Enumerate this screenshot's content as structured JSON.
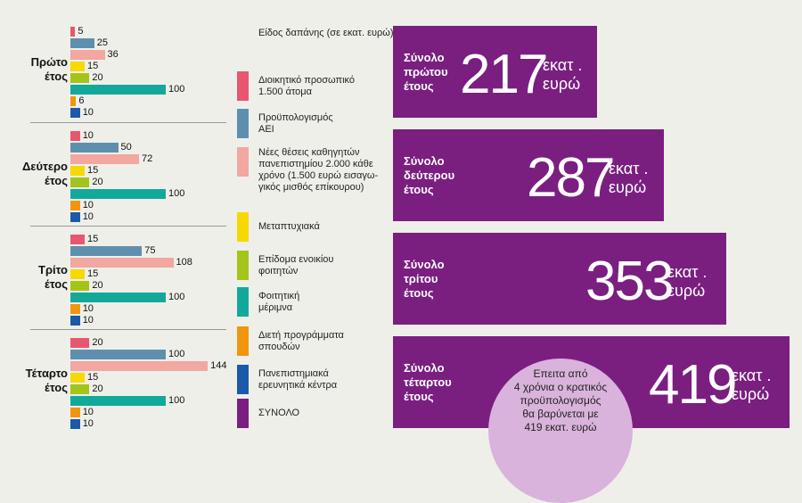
{
  "chart_data": {
    "type": "bar",
    "orientation": "horizontal",
    "groups": [
      "Πρώτο\nέτος",
      "Δεύτερο\nέτος",
      "Τρίτο\nέτος",
      "Τέταρτο\nέτος"
    ],
    "series": [
      {
        "name": "Διοικητικό προσωπικό\n1.500 άτομα",
        "color": "#e8566f",
        "values": [
          5,
          10,
          15,
          20
        ]
      },
      {
        "name": "Προϋπολογισμός\nΑΕΙ",
        "color": "#5f8fae",
        "values": [
          25,
          50,
          75,
          100
        ]
      },
      {
        "name": "Νέες θέσεις καθηγητών\nπανεπιστημίου 2.000 κάθε\nχρόνο (1.500 ευρώ εισαγω-\nγικός μισθός επίκουρου)",
        "color": "#f2a7a0",
        "values": [
          36,
          72,
          108,
          144
        ]
      },
      {
        "name": "Μεταπτυχιακά",
        "color": "#f7d800",
        "values": [
          15,
          15,
          15,
          15
        ]
      },
      {
        "name": "Επίδομα ενοικίου\nφοιτητών",
        "color": "#a4c41a",
        "values": [
          20,
          20,
          20,
          20
        ]
      },
      {
        "name": "Φοιτητική\nμέριμνα",
        "color": "#12a99b",
        "values": [
          100,
          100,
          100,
          100
        ]
      },
      {
        "name": "Διετή προγράμματα\nσπουδών",
        "color": "#f0960e",
        "values": [
          6,
          10,
          10,
          10
        ]
      },
      {
        "name": "Πανεπιστημιακά\nερευνητικά κέντρα",
        "color": "#1a5aa8",
        "values": [
          10,
          10,
          10,
          10
        ]
      },
      {
        "name": "ΣΥΝΟΛΟ",
        "color": "#7a1f80",
        "values": []
      }
    ],
    "value_max": 144,
    "legend_title": "Είδος δαπάνης\n(σε εκατ. ευρώ)",
    "legend_position": "center",
    "totals": [
      {
        "label": "Σύνολο\nπρώτου\nέτους",
        "value": "217",
        "unit": "εκατ .\nευρώ"
      },
      {
        "label": "Σύνολο\nδεύτερου\nέτους",
        "value": "287",
        "unit": "εκατ .\nευρώ"
      },
      {
        "label": "Σύνολο\nτρίτου\nέτους",
        "value": "353",
        "unit": "εκατ .\nευρώ"
      },
      {
        "label": "Σύνολο\nτέταρτου\nέτους",
        "value": "419",
        "unit": "εκατ .\nευρώ"
      }
    ],
    "annotation": "Επειτα από\n4 χρόνια ο κρατικός\nπροϋπολογισμός\nθα βαρύνεται με\n419 εκατ. ευρώ",
    "grid": false
  }
}
